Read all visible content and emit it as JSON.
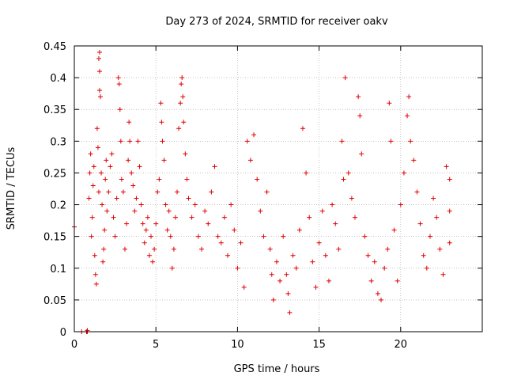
{
  "chart_data": {
    "type": "scatter",
    "title": "Day 273 of 2024, SRMTID for receiver oakv",
    "xlabel": "GPS time / hours",
    "ylabel": "SRMTID / TECUs",
    "xlim": [
      0,
      25
    ],
    "ylim": [
      0,
      0.45
    ],
    "xticks": [
      0,
      5,
      10,
      15,
      20
    ],
    "yticks": [
      0,
      0.05,
      0.1,
      0.15,
      0.2,
      0.25,
      0.3,
      0.35,
      0.4,
      0.45
    ],
    "xtick_labels": [
      "0",
      "5",
      "10",
      "15",
      "20"
    ],
    "ytick_labels": [
      "0",
      "0.05",
      "0.1",
      "0.15",
      "0.2",
      "0.25",
      "0.3",
      "0.35",
      "0.4",
      "0.45"
    ],
    "grid": true,
    "marker": "plus",
    "color": "#e00000",
    "series": [
      {
        "name": "SRMTID",
        "points": [
          [
            0.0,
            0.165
          ],
          [
            0.45,
            0.0
          ],
          [
            0.75,
            0.0
          ],
          [
            0.8,
            0.0
          ],
          [
            0.8,
            0.002
          ],
          [
            0.9,
            0.21
          ],
          [
            0.95,
            0.25
          ],
          [
            1.0,
            0.28
          ],
          [
            1.05,
            0.15
          ],
          [
            1.1,
            0.18
          ],
          [
            1.15,
            0.23
          ],
          [
            1.2,
            0.26
          ],
          [
            1.25,
            0.12
          ],
          [
            1.3,
            0.09
          ],
          [
            1.35,
            0.075
          ],
          [
            1.4,
            0.32
          ],
          [
            1.45,
            0.29
          ],
          [
            1.5,
            0.22
          ],
          [
            1.55,
            0.38
          ],
          [
            1.55,
            0.41
          ],
          [
            1.5,
            0.43
          ],
          [
            1.55,
            0.44
          ],
          [
            1.6,
            0.37
          ],
          [
            1.65,
            0.25
          ],
          [
            1.7,
            0.2
          ],
          [
            1.75,
            0.11
          ],
          [
            1.8,
            0.13
          ],
          [
            1.85,
            0.16
          ],
          [
            1.9,
            0.24
          ],
          [
            1.95,
            0.27
          ],
          [
            2.0,
            0.19
          ],
          [
            2.1,
            0.22
          ],
          [
            2.2,
            0.26
          ],
          [
            2.3,
            0.28
          ],
          [
            2.4,
            0.18
          ],
          [
            2.5,
            0.15
          ],
          [
            2.6,
            0.21
          ],
          [
            2.7,
            0.4
          ],
          [
            2.75,
            0.39
          ],
          [
            2.8,
            0.35
          ],
          [
            2.85,
            0.3
          ],
          [
            2.9,
            0.24
          ],
          [
            3.0,
            0.22
          ],
          [
            3.1,
            0.13
          ],
          [
            3.2,
            0.17
          ],
          [
            3.3,
            0.27
          ],
          [
            3.35,
            0.33
          ],
          [
            3.4,
            0.3
          ],
          [
            3.5,
            0.25
          ],
          [
            3.6,
            0.23
          ],
          [
            3.7,
            0.19
          ],
          [
            3.8,
            0.21
          ],
          [
            3.9,
            0.3
          ],
          [
            4.0,
            0.26
          ],
          [
            4.1,
            0.2
          ],
          [
            4.2,
            0.17
          ],
          [
            4.3,
            0.14
          ],
          [
            4.4,
            0.16
          ],
          [
            4.5,
            0.18
          ],
          [
            4.6,
            0.12
          ],
          [
            4.7,
            0.15
          ],
          [
            4.8,
            0.11
          ],
          [
            4.9,
            0.13
          ],
          [
            5.0,
            0.17
          ],
          [
            5.1,
            0.22
          ],
          [
            5.2,
            0.24
          ],
          [
            5.3,
            0.36
          ],
          [
            5.35,
            0.33
          ],
          [
            5.4,
            0.3
          ],
          [
            5.5,
            0.27
          ],
          [
            5.6,
            0.2
          ],
          [
            5.7,
            0.16
          ],
          [
            5.8,
            0.19
          ],
          [
            5.9,
            0.15
          ],
          [
            6.0,
            0.1
          ],
          [
            6.1,
            0.13
          ],
          [
            6.2,
            0.18
          ],
          [
            6.3,
            0.22
          ],
          [
            6.4,
            0.32
          ],
          [
            6.5,
            0.36
          ],
          [
            6.55,
            0.39
          ],
          [
            6.6,
            0.4
          ],
          [
            6.65,
            0.37
          ],
          [
            6.7,
            0.33
          ],
          [
            6.8,
            0.28
          ],
          [
            6.9,
            0.24
          ],
          [
            7.0,
            0.21
          ],
          [
            7.2,
            0.18
          ],
          [
            7.4,
            0.2
          ],
          [
            7.6,
            0.15
          ],
          [
            7.8,
            0.13
          ],
          [
            8.0,
            0.19
          ],
          [
            8.2,
            0.17
          ],
          [
            8.4,
            0.22
          ],
          [
            8.6,
            0.26
          ],
          [
            8.8,
            0.15
          ],
          [
            9.0,
            0.14
          ],
          [
            9.2,
            0.18
          ],
          [
            9.4,
            0.12
          ],
          [
            9.6,
            0.2
          ],
          [
            9.8,
            0.16
          ],
          [
            10.0,
            0.1
          ],
          [
            10.2,
            0.14
          ],
          [
            10.4,
            0.07
          ],
          [
            10.6,
            0.3
          ],
          [
            10.8,
            0.27
          ],
          [
            11.0,
            0.31
          ],
          [
            11.2,
            0.24
          ],
          [
            11.4,
            0.19
          ],
          [
            11.6,
            0.15
          ],
          [
            11.8,
            0.22
          ],
          [
            12.0,
            0.13
          ],
          [
            12.1,
            0.09
          ],
          [
            12.2,
            0.05
          ],
          [
            12.4,
            0.11
          ],
          [
            12.6,
            0.08
          ],
          [
            12.8,
            0.15
          ],
          [
            13.0,
            0.09
          ],
          [
            13.1,
            0.06
          ],
          [
            13.2,
            0.03
          ],
          [
            13.4,
            0.12
          ],
          [
            13.6,
            0.1
          ],
          [
            13.8,
            0.16
          ],
          [
            14.0,
            0.32
          ],
          [
            14.2,
            0.25
          ],
          [
            14.4,
            0.18
          ],
          [
            14.6,
            0.11
          ],
          [
            14.8,
            0.07
          ],
          [
            15.0,
            0.14
          ],
          [
            15.2,
            0.19
          ],
          [
            15.4,
            0.12
          ],
          [
            15.6,
            0.08
          ],
          [
            15.8,
            0.2
          ],
          [
            16.0,
            0.17
          ],
          [
            16.2,
            0.13
          ],
          [
            16.4,
            0.3
          ],
          [
            16.5,
            0.24
          ],
          [
            16.6,
            0.4
          ],
          [
            16.8,
            0.25
          ],
          [
            17.0,
            0.21
          ],
          [
            17.2,
            0.18
          ],
          [
            17.4,
            0.37
          ],
          [
            17.5,
            0.34
          ],
          [
            17.6,
            0.28
          ],
          [
            17.8,
            0.15
          ],
          [
            18.0,
            0.12
          ],
          [
            18.2,
            0.08
          ],
          [
            18.4,
            0.11
          ],
          [
            18.6,
            0.06
          ],
          [
            18.8,
            0.05
          ],
          [
            19.0,
            0.1
          ],
          [
            19.2,
            0.13
          ],
          [
            19.3,
            0.36
          ],
          [
            19.4,
            0.3
          ],
          [
            19.6,
            0.16
          ],
          [
            19.8,
            0.08
          ],
          [
            20.0,
            0.2
          ],
          [
            20.2,
            0.25
          ],
          [
            20.4,
            0.34
          ],
          [
            20.5,
            0.37
          ],
          [
            20.6,
            0.3
          ],
          [
            20.8,
            0.27
          ],
          [
            21.0,
            0.22
          ],
          [
            21.2,
            0.17
          ],
          [
            21.4,
            0.12
          ],
          [
            21.6,
            0.1
          ],
          [
            21.8,
            0.15
          ],
          [
            22.0,
            0.21
          ],
          [
            22.2,
            0.18
          ],
          [
            22.4,
            0.13
          ],
          [
            22.6,
            0.09
          ],
          [
            22.8,
            0.26
          ],
          [
            23.0,
            0.19
          ],
          [
            23.0,
            0.14
          ],
          [
            23.0,
            0.24
          ]
        ]
      }
    ]
  }
}
